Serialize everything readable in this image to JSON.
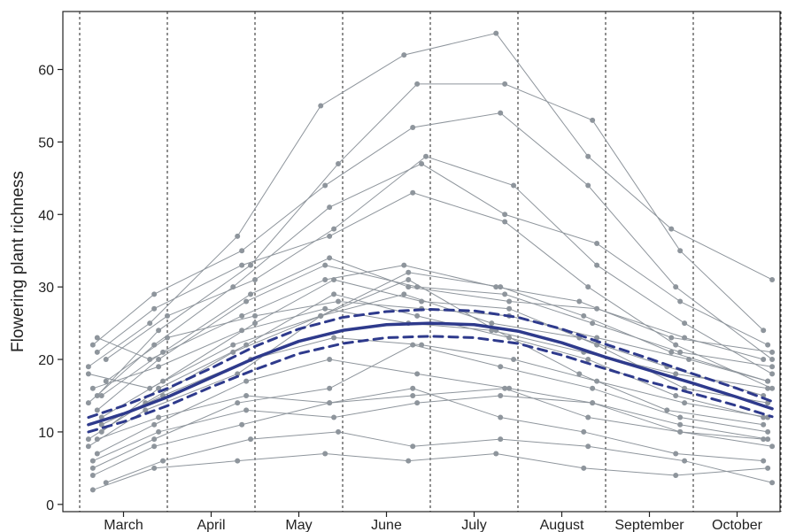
{
  "chart_data": {
    "type": "line",
    "title": "",
    "xlabel": "",
    "ylabel": "Flowering plant richness",
    "x_categories": [
      "March",
      "April",
      "May",
      "June",
      "July",
      "August",
      "September",
      "October"
    ],
    "ylim": [
      -1,
      68
    ],
    "y_ticks": [
      0,
      10,
      20,
      30,
      40,
      50,
      60
    ],
    "xlim": [
      0,
      8.2
    ],
    "month_boundaries": [
      0,
      1,
      2,
      3,
      4,
      5,
      6,
      7,
      8
    ],
    "grid": "vertical dashed lines at month boundaries",
    "colors": {
      "sites": "#8e959c",
      "fit": "#2e3a8c"
    },
    "fit_line": {
      "x": [
        0.1,
        0.5,
        1.0,
        1.5,
        2.0,
        2.5,
        3.0,
        3.5,
        4.0,
        4.5,
        5.0,
        5.5,
        6.0,
        6.5,
        7.0,
        7.5,
        7.9
      ],
      "y": [
        11,
        12.5,
        14.8,
        17.5,
        20.2,
        22.5,
        24,
        24.8,
        25,
        24.8,
        23.9,
        22.3,
        20.3,
        18.5,
        16.7,
        14.8,
        13.2
      ]
    },
    "ci_upper": {
      "x": [
        0.1,
        0.5,
        1.0,
        1.5,
        2.0,
        2.5,
        3.0,
        3.5,
        4.0,
        4.5,
        5.0,
        5.5,
        6.0,
        6.5,
        7.0,
        7.5,
        7.9
      ],
      "y": [
        12,
        13.6,
        16,
        18.8,
        21.8,
        24.2,
        25.8,
        26.6,
        26.9,
        26.7,
        25.8,
        24.2,
        22.1,
        20.1,
        18,
        16,
        14.2
      ]
    },
    "ci_lower": {
      "x": [
        0.1,
        0.5,
        1.0,
        1.5,
        2.0,
        2.5,
        3.0,
        3.5,
        4.0,
        4.5,
        5.0,
        5.5,
        6.0,
        6.5,
        7.0,
        7.5,
        7.9
      ],
      "y": [
        10,
        11.4,
        13.6,
        16.2,
        18.6,
        20.8,
        22.2,
        23,
        23.2,
        23,
        22.2,
        20.6,
        18.7,
        16.9,
        15.3,
        13.6,
        12.1
      ]
    },
    "site_series": [
      {
        "x": [
          0.15,
          0.85,
          1.8,
          2.8,
          3.75,
          4.75,
          5.75,
          6.8,
          7.85
        ],
        "y": [
          2,
          5,
          6,
          7,
          6,
          7,
          5,
          4,
          5
        ]
      },
      {
        "x": [
          0.2,
          0.9,
          1.9,
          2.85,
          3.8,
          4.85,
          5.8,
          6.85,
          7.9
        ],
        "y": [
          9,
          12,
          15,
          14,
          15,
          16,
          12,
          10,
          8
        ]
      },
      {
        "x": [
          0.1,
          0.8,
          1.75,
          2.75,
          3.7,
          4.7,
          5.7,
          6.7,
          7.8
        ],
        "y": [
          18,
          16,
          22,
          26,
          29,
          25,
          23,
          19,
          15
        ]
      },
      {
        "x": [
          0.25,
          0.95,
          2.0,
          2.9,
          3.9,
          4.9,
          5.9,
          6.9,
          7.85
        ],
        "y": [
          12,
          17,
          25,
          31,
          28,
          27,
          22,
          16,
          14
        ]
      },
      {
        "x": [
          0.15,
          0.85,
          1.85,
          2.8,
          3.8,
          4.8,
          5.8,
          6.8,
          7.9
        ],
        "y": [
          22,
          29,
          35,
          44,
          52,
          54,
          44,
          30,
          20
        ]
      },
      {
        "x": [
          0.2,
          0.9,
          1.95,
          2.95,
          3.85,
          4.85,
          5.85,
          6.85,
          7.8
        ],
        "y": [
          15,
          24,
          33,
          47,
          58,
          58,
          53,
          35,
          24
        ]
      },
      {
        "x": [
          0.1,
          0.75,
          1.8,
          2.75,
          3.75,
          4.8,
          5.75,
          6.75,
          7.85
        ],
        "y": [
          8,
          13,
          18,
          26,
          32,
          30,
          26,
          21,
          17
        ]
      },
      {
        "x": [
          0.3,
          1.0,
          2.0,
          2.9,
          3.95,
          4.95,
          5.9,
          6.9,
          7.9
        ],
        "y": [
          20,
          26,
          31,
          38,
          48,
          44,
          33,
          25,
          18
        ]
      },
      {
        "x": [
          0.15,
          0.85,
          1.8,
          2.85,
          3.8,
          4.8,
          5.85,
          6.85,
          7.85
        ],
        "y": [
          5,
          9,
          14,
          16,
          22,
          19,
          16,
          12,
          10
        ]
      },
      {
        "x": [
          0.25,
          0.9,
          1.9,
          2.9,
          3.85,
          4.9,
          5.8,
          6.8,
          7.8
        ],
        "y": [
          10,
          16,
          22,
          29,
          26,
          23,
          20,
          15,
          12
        ]
      },
      {
        "x": [
          0.2,
          0.8,
          1.85,
          2.8,
          3.7,
          4.75,
          5.7,
          6.75,
          7.9
        ],
        "y": [
          23,
          20,
          26,
          31,
          33,
          30,
          28,
          23,
          21
        ]
      },
      {
        "x": [
          0.1,
          0.85,
          1.75,
          2.85,
          3.9,
          4.85,
          5.9,
          6.85,
          7.85
        ],
        "y": [
          14,
          22,
          30,
          41,
          47,
          40,
          36,
          28,
          22
        ]
      },
      {
        "x": [
          0.3,
          0.95,
          1.95,
          2.95,
          3.8,
          4.8,
          5.8,
          6.9,
          7.9
        ],
        "y": [
          3,
          6,
          9,
          10,
          8,
          9,
          8,
          6,
          3
        ]
      },
      {
        "x": [
          0.15,
          0.9,
          1.85,
          2.8,
          3.75,
          4.7,
          5.75,
          6.8,
          7.85
        ],
        "y": [
          16,
          19,
          24,
          27,
          25,
          24,
          21,
          18,
          16
        ]
      },
      {
        "x": [
          0.2,
          0.85,
          1.9,
          2.85,
          3.85,
          4.9,
          5.85,
          6.85,
          7.8
        ],
        "y": [
          7,
          11,
          17,
          20,
          18,
          16,
          14,
          10,
          9
        ]
      },
      {
        "x": [
          0.1,
          0.8,
          1.8,
          2.75,
          3.7,
          4.75,
          5.8,
          6.75,
          7.9
        ],
        "y": [
          19,
          25,
          37,
          55,
          62,
          65,
          48,
          38,
          31
        ]
      },
      {
        "x": [
          0.25,
          0.95,
          1.95,
          2.9,
          3.9,
          4.95,
          5.9,
          6.9,
          7.85
        ],
        "y": [
          11,
          15,
          20,
          23,
          22,
          20,
          17,
          14,
          12
        ]
      },
      {
        "x": [
          0.15,
          0.85,
          1.85,
          2.85,
          3.8,
          4.8,
          5.75,
          6.8,
          7.8
        ],
        "y": [
          4,
          8,
          11,
          14,
          16,
          12,
          10,
          7,
          6
        ]
      },
      {
        "x": [
          0.2,
          0.9,
          1.9,
          2.8,
          3.85,
          4.85,
          5.85,
          6.85,
          7.9
        ],
        "y": [
          13,
          20,
          28,
          33,
          30,
          29,
          25,
          21,
          19
        ]
      },
      {
        "x": [
          0.3,
          1.0,
          2.0,
          2.95,
          3.9,
          4.9,
          5.9,
          6.95,
          7.85
        ],
        "y": [
          17,
          23,
          26,
          28,
          27,
          26,
          23,
          20,
          17
        ]
      },
      {
        "x": [
          0.1,
          0.75,
          1.75,
          2.75,
          3.75,
          4.75,
          5.7,
          6.7,
          7.8
        ],
        "y": [
          9,
          14,
          21,
          26,
          31,
          24,
          18,
          13,
          11
        ]
      },
      {
        "x": [
          0.2,
          0.85,
          1.85,
          2.85,
          3.8,
          4.85,
          5.8,
          6.8,
          7.9
        ],
        "y": [
          21,
          27,
          33,
          37,
          43,
          39,
          30,
          22,
          16
        ]
      },
      {
        "x": [
          0.15,
          0.9,
          1.9,
          2.9,
          3.85,
          4.8,
          5.85,
          6.85,
          7.85
        ],
        "y": [
          6,
          10,
          13,
          12,
          14,
          15,
          14,
          11,
          9
        ]
      },
      {
        "x": [
          0.25,
          0.95,
          1.95,
          2.85,
          3.75,
          4.9,
          5.9,
          6.9,
          7.8
        ],
        "y": [
          15,
          21,
          29,
          34,
          30,
          28,
          27,
          23,
          20
        ]
      }
    ]
  }
}
